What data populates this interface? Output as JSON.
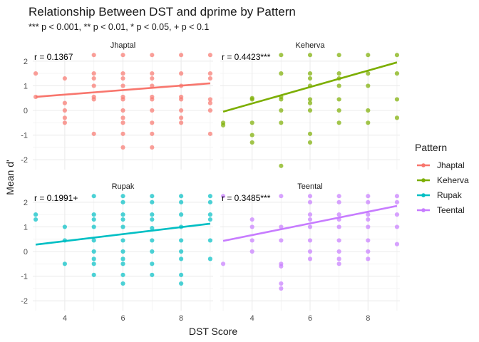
{
  "chart_data": {
    "type": "scatter",
    "title": "Relationship Between DST and dprime by Pattern",
    "subtitle": "*** p < 0.001, ** p < 0.01, * p < 0.05, + p < 0.1",
    "xlabel": "DST Score",
    "ylabel": "Mean d'",
    "xlim": [
      2.9,
      9.1
    ],
    "ylim": [
      -2.4,
      2.4
    ],
    "xticks": [
      4,
      6,
      8
    ],
    "yticks": [
      -2,
      -1,
      0,
      1,
      2
    ],
    "grid": true,
    "legend": {
      "title": "Pattern",
      "placement": "right"
    },
    "panels": [
      {
        "name": "Jhaptal",
        "color": "#F8766D",
        "corr_label": "r = 0.1367",
        "fit": {
          "x": [
            3,
            9
          ],
          "y": [
            0.55,
            1.1
          ]
        },
        "points": [
          [
            3,
            1.5
          ],
          [
            3,
            0.55
          ],
          [
            4,
            1.3
          ],
          [
            4,
            0.3
          ],
          [
            4,
            0.0
          ],
          [
            4,
            -0.3
          ],
          [
            4,
            -0.5
          ],
          [
            5,
            2.25
          ],
          [
            5,
            1.5
          ],
          [
            5,
            1.3
          ],
          [
            5,
            1.0
          ],
          [
            5,
            0.55
          ],
          [
            5,
            0.45
          ],
          [
            5,
            -0.95
          ],
          [
            6,
            2.25
          ],
          [
            6,
            1.5
          ],
          [
            6,
            1.3
          ],
          [
            6,
            1.0
          ],
          [
            6,
            0.55
          ],
          [
            6,
            0.45
          ],
          [
            6,
            0.0
          ],
          [
            6,
            -0.3
          ],
          [
            6,
            -0.5
          ],
          [
            6,
            -0.95
          ],
          [
            6,
            -1.5
          ],
          [
            7,
            2.25
          ],
          [
            7,
            1.5
          ],
          [
            7,
            1.3
          ],
          [
            7,
            1.0
          ],
          [
            7,
            0.55
          ],
          [
            7,
            0.45
          ],
          [
            7,
            0.0
          ],
          [
            7,
            -0.5
          ],
          [
            7,
            -0.95
          ],
          [
            7,
            -1.5
          ],
          [
            8,
            2.25
          ],
          [
            8,
            1.5
          ],
          [
            8,
            1.0
          ],
          [
            8,
            0.55
          ],
          [
            8,
            0.45
          ],
          [
            8,
            0.0
          ],
          [
            8,
            -0.3
          ],
          [
            8,
            -0.5
          ],
          [
            9,
            2.25
          ],
          [
            9,
            1.5
          ],
          [
            9,
            1.3
          ],
          [
            9,
            0.45
          ],
          [
            9,
            0.3
          ],
          [
            9,
            0.0
          ],
          [
            9,
            -0.95
          ]
        ]
      },
      {
        "name": "Keherva",
        "color": "#7CAE00",
        "corr_label": "r = 0.4423***",
        "fit": {
          "x": [
            3,
            9
          ],
          "y": [
            -0.05,
            1.95
          ]
        },
        "points": [
          [
            3,
            -0.5
          ],
          [
            3,
            -0.6
          ],
          [
            4,
            0.5
          ],
          [
            4,
            0.45
          ],
          [
            4,
            -0.5
          ],
          [
            4,
            -1.0
          ],
          [
            4,
            -1.3
          ],
          [
            5,
            2.25
          ],
          [
            5,
            1.5
          ],
          [
            5,
            0.55
          ],
          [
            5,
            0.45
          ],
          [
            5,
            0.0
          ],
          [
            5,
            -0.5
          ],
          [
            5,
            -2.25
          ],
          [
            6,
            2.25
          ],
          [
            6,
            1.5
          ],
          [
            6,
            1.3
          ],
          [
            6,
            1.0
          ],
          [
            6,
            0.45
          ],
          [
            6,
            0.3
          ],
          [
            6,
            0.0
          ],
          [
            6,
            -0.95
          ],
          [
            6,
            -1.3
          ],
          [
            7,
            2.25
          ],
          [
            7,
            1.5
          ],
          [
            7,
            1.3
          ],
          [
            7,
            1.0
          ],
          [
            7,
            0.45
          ],
          [
            7,
            0.0
          ],
          [
            7,
            -0.5
          ],
          [
            8,
            2.25
          ],
          [
            8,
            1.5
          ],
          [
            8,
            1.0
          ],
          [
            8,
            0.0
          ],
          [
            8,
            -0.5
          ],
          [
            9,
            2.25
          ],
          [
            9,
            1.5
          ],
          [
            9,
            0.45
          ],
          [
            9,
            -0.3
          ]
        ]
      },
      {
        "name": "Rupak",
        "color": "#00BFC4",
        "corr_label": "r = 0.1991+",
        "fit": {
          "x": [
            3,
            9
          ],
          "y": [
            0.28,
            1.13
          ]
        },
        "points": [
          [
            3,
            1.5
          ],
          [
            3,
            1.3
          ],
          [
            4,
            1.0
          ],
          [
            4,
            0.45
          ],
          [
            4,
            -0.5
          ],
          [
            5,
            2.25
          ],
          [
            5,
            1.5
          ],
          [
            5,
            1.3
          ],
          [
            5,
            1.0
          ],
          [
            5,
            0.45
          ],
          [
            5,
            0.0
          ],
          [
            5,
            -0.3
          ],
          [
            5,
            -0.5
          ],
          [
            5,
            -0.95
          ],
          [
            6,
            2.25
          ],
          [
            6,
            2.0
          ],
          [
            6,
            1.5
          ],
          [
            6,
            1.3
          ],
          [
            6,
            1.0
          ],
          [
            6,
            0.45
          ],
          [
            6,
            0.0
          ],
          [
            6,
            -0.3
          ],
          [
            6,
            -0.5
          ],
          [
            6,
            -0.95
          ],
          [
            6,
            -1.3
          ],
          [
            7,
            2.25
          ],
          [
            7,
            2.0
          ],
          [
            7,
            1.5
          ],
          [
            7,
            1.3
          ],
          [
            7,
            0.95
          ],
          [
            7,
            0.45
          ],
          [
            7,
            0.0
          ],
          [
            7,
            -0.5
          ],
          [
            7,
            -0.95
          ],
          [
            8,
            2.25
          ],
          [
            8,
            2.0
          ],
          [
            8,
            1.5
          ],
          [
            8,
            1.0
          ],
          [
            8,
            0.45
          ],
          [
            8,
            0.0
          ],
          [
            8,
            -0.3
          ],
          [
            8,
            -0.95
          ],
          [
            8,
            -1.3
          ],
          [
            9,
            2.25
          ],
          [
            9,
            2.0
          ],
          [
            9,
            1.5
          ],
          [
            9,
            1.3
          ],
          [
            9,
            0.45
          ],
          [
            9,
            -0.3
          ]
        ]
      },
      {
        "name": "Teental",
        "color": "#C77CFF",
        "corr_label": "r = 0.3485***",
        "fit": {
          "x": [
            3,
            9
          ],
          "y": [
            0.43,
            1.85
          ]
        },
        "points": [
          [
            3,
            2.25
          ],
          [
            3,
            -0.5
          ],
          [
            4,
            1.3
          ],
          [
            4,
            1.0
          ],
          [
            4,
            0.45
          ],
          [
            4,
            0.0
          ],
          [
            5,
            2.25
          ],
          [
            5,
            1.0
          ],
          [
            5,
            0.45
          ],
          [
            5,
            -0.5
          ],
          [
            5,
            -0.6
          ],
          [
            5,
            -1.3
          ],
          [
            5,
            -1.5
          ],
          [
            6,
            2.25
          ],
          [
            6,
            2.0
          ],
          [
            6,
            1.5
          ],
          [
            6,
            1.3
          ],
          [
            6,
            1.0
          ],
          [
            6,
            0.45
          ],
          [
            6,
            0.0
          ],
          [
            6,
            -0.3
          ],
          [
            7,
            2.25
          ],
          [
            7,
            2.0
          ],
          [
            7,
            1.5
          ],
          [
            7,
            1.3
          ],
          [
            7,
            1.0
          ],
          [
            7,
            0.45
          ],
          [
            7,
            0.0
          ],
          [
            7,
            -0.3
          ],
          [
            7,
            -0.5
          ],
          [
            8,
            2.25
          ],
          [
            8,
            2.0
          ],
          [
            8,
            1.5
          ],
          [
            8,
            1.3
          ],
          [
            8,
            1.0
          ],
          [
            8,
            0.45
          ],
          [
            8,
            0.0
          ],
          [
            8,
            -0.3
          ],
          [
            9,
            2.25
          ],
          [
            9,
            2.0
          ],
          [
            9,
            1.5
          ],
          [
            9,
            1.0
          ],
          [
            9,
            0.3
          ]
        ]
      }
    ]
  }
}
